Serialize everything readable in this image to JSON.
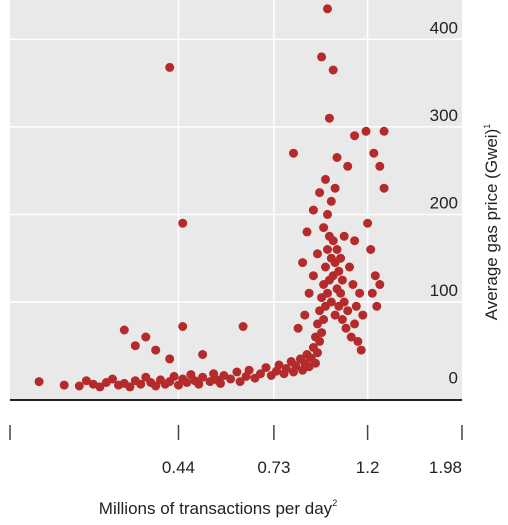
{
  "chart_data": {
    "type": "scatter",
    "xlabel": "Millions of transactions per day",
    "xlabel_footnote": "2",
    "ylabel": "Average gas price (Gwei)",
    "ylabel_footnote": "1",
    "x_scale": "log",
    "x_ticks": [
      "0.44",
      "0.73",
      "1.2",
      "1.98"
    ],
    "x_tick_values": [
      0.44,
      0.73,
      1.2,
      1.98
    ],
    "x_range": [
      0.18,
      1.98
    ],
    "y_ticks": [
      "0",
      "100",
      "200",
      "300",
      "400"
    ],
    "y_tick_values": [
      0,
      100,
      200,
      300,
      400
    ],
    "y_range": [
      -12,
      445
    ],
    "grid": true,
    "colors": {
      "points": "#b52a2a",
      "panel": "#e9e9e9",
      "grid": "#ffffff",
      "baseline": "#222222"
    },
    "series": [
      {
        "points": [
          [
            0.21,
            9
          ],
          [
            0.24,
            5
          ],
          [
            0.26,
            4
          ],
          [
            0.27,
            10
          ],
          [
            0.28,
            6
          ],
          [
            0.29,
            3
          ],
          [
            0.3,
            8
          ],
          [
            0.31,
            12
          ],
          [
            0.32,
            5
          ],
          [
            0.33,
            7
          ],
          [
            0.34,
            3
          ],
          [
            0.35,
            10
          ],
          [
            0.36,
            6
          ],
          [
            0.37,
            14
          ],
          [
            0.38,
            8
          ],
          [
            0.39,
            4
          ],
          [
            0.4,
            11
          ],
          [
            0.41,
            6
          ],
          [
            0.42,
            9
          ],
          [
            0.43,
            15
          ],
          [
            0.44,
            5
          ],
          [
            0.45,
            12
          ],
          [
            0.46,
            8
          ],
          [
            0.47,
            17
          ],
          [
            0.48,
            10
          ],
          [
            0.49,
            6
          ],
          [
            0.5,
            14
          ],
          [
            0.52,
            9
          ],
          [
            0.53,
            18
          ],
          [
            0.54,
            11
          ],
          [
            0.55,
            7
          ],
          [
            0.56,
            16
          ],
          [
            0.58,
            12
          ],
          [
            0.6,
            20
          ],
          [
            0.61,
            9
          ],
          [
            0.63,
            15
          ],
          [
            0.64,
            22
          ],
          [
            0.66,
            13
          ],
          [
            0.68,
            18
          ],
          [
            0.7,
            25
          ],
          [
            0.72,
            16
          ],
          [
            0.74,
            21
          ],
          [
            0.75,
            28
          ],
          [
            0.77,
            18
          ],
          [
            0.78,
            24
          ],
          [
            0.8,
            32
          ],
          [
            0.81,
            20
          ],
          [
            0.82,
            27
          ],
          [
            0.84,
            35
          ],
          [
            0.85,
            22
          ],
          [
            0.86,
            30
          ],
          [
            0.87,
            40
          ],
          [
            0.88,
            26
          ],
          [
            0.89,
            36
          ],
          [
            0.9,
            48
          ],
          [
            0.91,
            30
          ],
          [
            0.91,
            60
          ],
          [
            0.92,
            42
          ],
          [
            0.92,
            75
          ],
          [
            0.93,
            55
          ],
          [
            0.93,
            90
          ],
          [
            0.94,
            65
          ],
          [
            0.94,
            105
          ],
          [
            0.95,
            80
          ],
          [
            0.95,
            120
          ],
          [
            0.96,
            95
          ],
          [
            0.96,
            140
          ],
          [
            0.97,
            110
          ],
          [
            0.97,
            160
          ],
          [
            0.98,
            125
          ],
          [
            0.98,
            175
          ],
          [
            0.99,
            100
          ],
          [
            0.99,
            150
          ],
          [
            1.0,
            130
          ],
          [
            1.0,
            170
          ],
          [
            1.01,
            85
          ],
          [
            1.01,
            145
          ],
          [
            1.02,
            115
          ],
          [
            1.02,
            160
          ],
          [
            1.03,
            95
          ],
          [
            1.03,
            135
          ],
          [
            1.04,
            110
          ],
          [
            1.04,
            150
          ],
          [
            1.05,
            80
          ],
          [
            1.05,
            125
          ],
          [
            1.06,
            100
          ],
          [
            1.07,
            70
          ],
          [
            1.08,
            90
          ],
          [
            1.1,
            60
          ],
          [
            1.12,
            75
          ],
          [
            1.14,
            55
          ],
          [
            1.16,
            45
          ],
          [
            0.83,
            70
          ],
          [
            0.86,
            85
          ],
          [
            0.88,
            110
          ],
          [
            0.9,
            130
          ],
          [
            0.92,
            155
          ],
          [
            0.95,
            185
          ],
          [
            0.97,
            200
          ],
          [
            0.99,
            215
          ],
          [
            1.01,
            230
          ],
          [
            0.96,
            240
          ],
          [
            0.93,
            225
          ],
          [
            0.9,
            205
          ],
          [
            0.87,
            180
          ],
          [
            0.85,
            145
          ],
          [
            1.06,
            175
          ],
          [
            1.09,
            140
          ],
          [
            1.11,
            120
          ],
          [
            1.13,
            95
          ],
          [
            1.12,
            170
          ],
          [
            1.15,
            110
          ],
          [
            1.17,
            85
          ],
          [
            0.37,
            60
          ],
          [
            0.39,
            45
          ],
          [
            0.42,
            35
          ],
          [
            0.45,
            72
          ],
          [
            0.5,
            40
          ],
          [
            0.35,
            50
          ],
          [
            0.33,
            68
          ],
          [
            0.62,
            72
          ],
          [
            0.42,
            368
          ],
          [
            0.45,
            190
          ],
          [
            0.81,
            270
          ],
          [
            0.94,
            380
          ],
          [
            0.97,
            435
          ],
          [
            0.98,
            310
          ],
          [
            1.0,
            365
          ],
          [
            1.02,
            265
          ],
          [
            1.08,
            255
          ],
          [
            1.12,
            290
          ],
          [
            1.19,
            295
          ],
          [
            1.24,
            270
          ],
          [
            1.28,
            255
          ],
          [
            1.31,
            295
          ],
          [
            1.31,
            230
          ],
          [
            1.2,
            190
          ],
          [
            1.22,
            160
          ],
          [
            1.25,
            130
          ],
          [
            1.28,
            120
          ],
          [
            1.26,
            95
          ],
          [
            1.23,
            110
          ]
        ]
      }
    ]
  }
}
